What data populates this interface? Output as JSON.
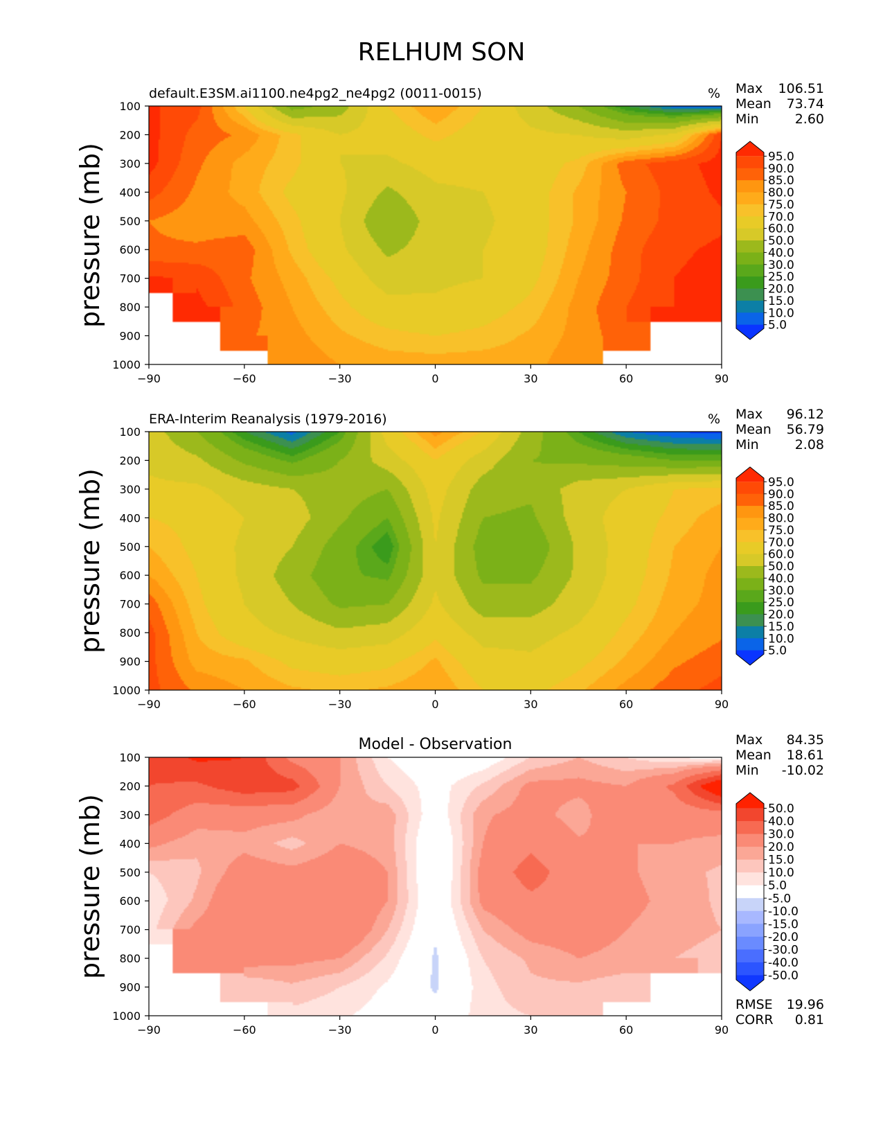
{
  "figure": {
    "title": "RELHUM SON"
  },
  "colors": {
    "abs_levels": [
      "#0a35ff",
      "#0a64e8",
      "#0c7fa6",
      "#1a8f88",
      "#3c9050",
      "#3a9b1c",
      "#5aa81b",
      "#7bb118",
      "#9cb91c",
      "#bcc01f",
      "#d7c928",
      "#e8cb27",
      "#f8c12a",
      "#ffab1a",
      "#ff9610",
      "#ff7f0a",
      "#ff6208",
      "#ff4a06",
      "#ff2a02"
    ],
    "diff_levels": [
      "#1038ff",
      "#2c55ff",
      "#4a6eff",
      "#6a8bff",
      "#8aa3ff",
      "#a8b8ff",
      "#c8d4f9",
      "#e0e6fb",
      "#ffffff",
      "#ffe3de",
      "#fdc6bd",
      "#fba796",
      "#fa8a76",
      "#f76a52",
      "#f2462e",
      "#ff2200"
    ]
  },
  "chart_data": [
    {
      "type": "heatmap",
      "title": "default.E3SM.ai1100.ne4pg2_ne4pg2 (0011-0015)",
      "units": "%",
      "xlabel": "",
      "ylabel": "pressure (mb)",
      "xlim": [
        -90,
        90
      ],
      "ylim": [
        1000,
        100
      ],
      "xticks": [
        -90,
        -60,
        -30,
        0,
        30,
        60,
        90
      ],
      "xtick_labels": [
        "−90",
        "−60",
        "−30",
        "0",
        "30",
        "60",
        "90"
      ],
      "yticks": [
        100,
        200,
        300,
        400,
        500,
        600,
        700,
        800,
        900,
        1000
      ],
      "lat": [
        -90,
        -75,
        -60,
        -45,
        -30,
        -15,
        0,
        15,
        30,
        45,
        60,
        75,
        90
      ],
      "lev": [
        100,
        200,
        300,
        400,
        500,
        600,
        700,
        800,
        900,
        1000
      ],
      "values": [
        [
          96,
          92,
          70,
          35,
          45,
          70,
          80,
          70,
          55,
          40,
          20,
          8,
          5
        ],
        [
          97,
          88,
          84,
          72,
          60,
          65,
          72,
          66,
          62,
          60,
          55,
          62,
          95
        ],
        [
          97,
          86,
          78,
          72,
          60,
          58,
          64,
          64,
          65,
          72,
          88,
          93,
          97
        ],
        [
          92,
          84,
          78,
          68,
          62,
          48,
          58,
          60,
          66,
          76,
          85,
          92,
          96
        ],
        [
          85,
          82,
          82,
          72,
          60,
          40,
          55,
          58,
          66,
          76,
          86,
          92,
          94
        ],
        [
          86,
          86,
          88,
          74,
          62,
          48,
          55,
          60,
          66,
          78,
          88,
          94,
          96
        ],
        [
          96,
          94,
          86,
          78,
          68,
          55,
          58,
          60,
          68,
          80,
          88,
          95,
          97
        ],
        [
          null,
          97,
          88,
          80,
          72,
          64,
          62,
          66,
          72,
          82,
          90,
          95,
          97
        ],
        [
          null,
          null,
          86,
          82,
          76,
          72,
          70,
          72,
          76,
          82,
          88,
          null,
          null
        ],
        [
          null,
          null,
          null,
          84,
          80,
          78,
          78,
          78,
          78,
          84,
          null,
          null,
          null
        ]
      ],
      "levels": [
        0,
        5,
        10,
        15,
        20,
        25,
        30,
        40,
        50,
        60,
        70,
        75,
        80,
        85,
        90,
        95
      ],
      "colorbar_labels": [
        "95.0",
        "90.0",
        "85.0",
        "80.0",
        "75.0",
        "70.0",
        "60.0",
        "50.0",
        "40.0",
        "30.0",
        "25.0",
        "20.0",
        "15.0",
        "10.0",
        "5.0"
      ],
      "stats": {
        "max_label": "Max",
        "max": "106.51",
        "mean_label": "Mean",
        "mean": "73.74",
        "min_label": "Min",
        "min": "2.60"
      }
    },
    {
      "type": "heatmap",
      "title": "ERA-Interim Reanalysis (1979-2016)",
      "units": "%",
      "xlabel": "",
      "ylabel": "pressure (mb)",
      "xlim": [
        -90,
        90
      ],
      "ylim": [
        1000,
        100
      ],
      "xticks": [
        -90,
        -60,
        -30,
        0,
        30,
        60,
        90
      ],
      "xtick_labels": [
        "−90",
        "−60",
        "−30",
        "0",
        "30",
        "60",
        "90"
      ],
      "yticks": [
        100,
        200,
        300,
        400,
        500,
        600,
        700,
        800,
        900,
        1000
      ],
      "lat": [
        -90,
        -75,
        -60,
        -45,
        -30,
        -15,
        0,
        15,
        30,
        45,
        60,
        75,
        90
      ],
      "lev": [
        100,
        200,
        300,
        400,
        500,
        600,
        700,
        800,
        900,
        1000
      ],
      "values": [
        [
          55,
          40,
          20,
          8,
          25,
          65,
          82,
          70,
          45,
          25,
          10,
          5,
          3
        ],
        [
          58,
          52,
          38,
          28,
          40,
          55,
          70,
          55,
          40,
          38,
          35,
          30,
          30
        ],
        [
          62,
          62,
          55,
          50,
          45,
          40,
          65,
          45,
          42,
          55,
          60,
          70,
          72
        ],
        [
          70,
          68,
          60,
          55,
          42,
          30,
          62,
          40,
          38,
          55,
          65,
          72,
          78
        ],
        [
          75,
          68,
          58,
          50,
          35,
          20,
          60,
          35,
          32,
          52,
          65,
          75,
          80
        ],
        [
          80,
          70,
          58,
          45,
          32,
          28,
          58,
          38,
          38,
          52,
          66,
          76,
          82
        ],
        [
          88,
          72,
          60,
          50,
          38,
          40,
          62,
          45,
          45,
          56,
          68,
          78,
          82
        ],
        [
          92,
          75,
          64,
          58,
          52,
          55,
          68,
          56,
          56,
          62,
          72,
          80,
          84
        ],
        [
          92,
          78,
          76,
          68,
          66,
          68,
          76,
          64,
          62,
          68,
          76,
          84,
          88
        ],
        [
          92,
          84,
          80,
          76,
          74,
          76,
          80,
          70,
          68,
          74,
          82,
          88,
          92
        ]
      ],
      "levels": [
        0,
        5,
        10,
        15,
        20,
        25,
        30,
        40,
        50,
        60,
        70,
        75,
        80,
        85,
        90,
        95
      ],
      "colorbar_labels": [
        "95.0",
        "90.0",
        "85.0",
        "80.0",
        "75.0",
        "70.0",
        "60.0",
        "50.0",
        "40.0",
        "30.0",
        "25.0",
        "20.0",
        "15.0",
        "10.0",
        "5.0"
      ],
      "stats": {
        "max_label": "Max",
        "max": "96.12",
        "mean_label": "Mean",
        "mean": "56.79",
        "min_label": "Min",
        "min": "2.08"
      }
    },
    {
      "type": "heatmap",
      "title": "Model - Observation",
      "units": "",
      "xlabel": "",
      "ylabel": "pressure (mb)",
      "xlim": [
        -90,
        90
      ],
      "ylim": [
        1000,
        100
      ],
      "xticks": [
        -90,
        -60,
        -30,
        0,
        30,
        60,
        90
      ],
      "xtick_labels": [
        "−90",
        "−60",
        "−30",
        "0",
        "30",
        "60",
        "90"
      ],
      "yticks": [
        100,
        200,
        300,
        400,
        500,
        600,
        700,
        800,
        900,
        1000
      ],
      "lat": [
        -90,
        -75,
        -60,
        -45,
        -30,
        -15,
        0,
        15,
        30,
        45,
        60,
        75,
        90
      ],
      "lev": [
        100,
        200,
        300,
        400,
        500,
        600,
        700,
        800,
        900,
        1000
      ],
      "values": [
        [
          42,
          52,
          50,
          27,
          20,
          5,
          -2,
          0,
          10,
          15,
          10,
          5,
          2
        ],
        [
          40,
          38,
          46,
          44,
          20,
          10,
          2,
          11,
          22,
          22,
          20,
          32,
          65
        ],
        [
          35,
          24,
          23,
          22,
          15,
          18,
          0,
          19,
          23,
          17,
          28,
          23,
          25
        ],
        [
          22,
          16,
          18,
          13,
          20,
          18,
          -4,
          20,
          28,
          21,
          20,
          20,
          18
        ],
        [
          10,
          14,
          24,
          22,
          25,
          20,
          -5,
          23,
          34,
          24,
          21,
          17,
          14
        ],
        [
          6,
          16,
          30,
          29,
          30,
          20,
          -3,
          22,
          28,
          26,
          22,
          18,
          14
        ],
        [
          8,
          22,
          26,
          28,
          30,
          15,
          -4,
          15,
          23,
          24,
          20,
          17,
          15
        ],
        [
          null,
          22,
          24,
          22,
          20,
          9,
          -6,
          10,
          16,
          20,
          18,
          15,
          13
        ],
        [
          null,
          null,
          10,
          14,
          10,
          4,
          -6,
          8,
          14,
          14,
          12,
          null,
          null
        ],
        [
          null,
          null,
          null,
          8,
          6,
          2,
          -2,
          8,
          10,
          10,
          null,
          null,
          null
        ]
      ],
      "levels": [
        -100,
        -50,
        -40,
        -30,
        -20,
        -15,
        -10,
        -5,
        5,
        10,
        15,
        20,
        30,
        40,
        50
      ],
      "colorbar_labels": [
        "50.0",
        "40.0",
        "30.0",
        "20.0",
        "15.0",
        "10.0",
        "5.0",
        "-5.0",
        "-10.0",
        "-15.0",
        "-20.0",
        "-30.0",
        "-40.0",
        "-50.0"
      ],
      "stats": {
        "max_label": "Max",
        "max": "84.35",
        "mean_label": "Mean",
        "mean": "18.61",
        "min_label": "Min",
        "min": "-10.02"
      },
      "metrics": {
        "rmse_label": "RMSE",
        "rmse": "19.96",
        "corr_label": "CORR",
        "corr": "0.81"
      }
    }
  ]
}
